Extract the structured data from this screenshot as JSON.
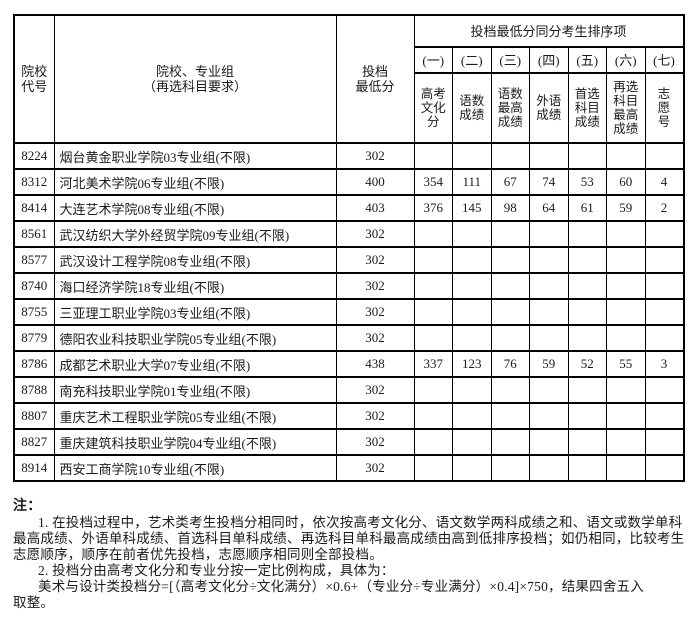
{
  "colors": {
    "background": "#ffffff",
    "border": "#000000",
    "text": "#1a1a1a"
  },
  "table": {
    "header": {
      "code_label": "院校\n代号",
      "name_label": "院校、专业组\n（再选科目要求）",
      "score_label": "投档\n最低分",
      "group_label": "投档最低分同分考生排序项",
      "sub_numbers": [
        "(一)",
        "(二)",
        "(三)",
        "(四)",
        "(五)",
        "(六)",
        "(七)"
      ],
      "sub_labels": [
        "高考\n文化\n分",
        "语数\n成绩",
        "语数\n最高\n成绩",
        "外语\n成绩",
        "首选\n科目\n成绩",
        "再选\n科目\n最高\n成绩",
        "志\n愿\n号"
      ]
    },
    "rows": [
      {
        "code": "8224",
        "name": "烟台黄金职业学院03专业组(不限)",
        "score": "302",
        "cols": [
          "",
          "",
          "",
          "",
          "",
          "",
          ""
        ]
      },
      {
        "code": "8312",
        "name": "河北美术学院06专业组(不限)",
        "score": "400",
        "cols": [
          "354",
          "111",
          "67",
          "74",
          "53",
          "60",
          "4"
        ]
      },
      {
        "code": "8414",
        "name": "大连艺术学院08专业组(不限)",
        "score": "403",
        "cols": [
          "376",
          "145",
          "98",
          "64",
          "61",
          "59",
          "2"
        ]
      },
      {
        "code": "8561",
        "name": "武汉纺织大学外经贸学院09专业组(不限)",
        "score": "302",
        "cols": [
          "",
          "",
          "",
          "",
          "",
          "",
          ""
        ]
      },
      {
        "code": "8577",
        "name": "武汉设计工程学院08专业组(不限)",
        "score": "302",
        "cols": [
          "",
          "",
          "",
          "",
          "",
          "",
          ""
        ]
      },
      {
        "code": "8740",
        "name": "海口经济学院18专业组(不限)",
        "score": "302",
        "cols": [
          "",
          "",
          "",
          "",
          "",
          "",
          ""
        ]
      },
      {
        "code": "8755",
        "name": "三亚理工职业学院03专业组(不限)",
        "score": "302",
        "cols": [
          "",
          "",
          "",
          "",
          "",
          "",
          ""
        ]
      },
      {
        "code": "8779",
        "name": "德阳农业科技职业学院05专业组(不限)",
        "score": "302",
        "cols": [
          "",
          "",
          "",
          "",
          "",
          "",
          ""
        ]
      },
      {
        "code": "8786",
        "name": "成都艺术职业大学07专业组(不限)",
        "score": "438",
        "cols": [
          "337",
          "123",
          "76",
          "59",
          "52",
          "55",
          "3"
        ]
      },
      {
        "code": "8788",
        "name": "南充科技职业学院01专业组(不限)",
        "score": "302",
        "cols": [
          "",
          "",
          "",
          "",
          "",
          "",
          ""
        ]
      },
      {
        "code": "8807",
        "name": "重庆艺术工程职业学院05专业组(不限)",
        "score": "302",
        "cols": [
          "",
          "",
          "",
          "",
          "",
          "",
          ""
        ]
      },
      {
        "code": "8827",
        "name": "重庆建筑科技职业学院04专业组(不限)",
        "score": "302",
        "cols": [
          "",
          "",
          "",
          "",
          "",
          "",
          ""
        ]
      },
      {
        "code": "8914",
        "name": "西安工商学院10专业组(不限)",
        "score": "302",
        "cols": [
          "",
          "",
          "",
          "",
          "",
          "",
          ""
        ]
      }
    ]
  },
  "notes": {
    "title": "注：",
    "lines": [
      {
        "text": "1. 在投档过程中，艺术类考生投档分相同时，依次按高考文化分、语文数学两科成绩之和、语文或数学单科",
        "indent": true
      },
      {
        "text": "最高成绩、外语单科成绩、首选科目单科成绩、再选科目单科最高成绩由高到低排序投档；如仍相同，比较考生",
        "indent": false
      },
      {
        "text": "志愿顺序，顺序在前者优先投档，志愿顺序相同则全部投档。",
        "indent": false
      },
      {
        "text": "2. 投档分由高考文化分和专业分按一定比例构成，具体为：",
        "indent": true
      },
      {
        "text": "美术与设计类投档分=[（高考文化分÷文化满分）×0.6+（专业分÷专业满分）×0.4]×750，结果四舍五入",
        "indent": true
      },
      {
        "text": "取整。",
        "indent": false
      }
    ]
  }
}
